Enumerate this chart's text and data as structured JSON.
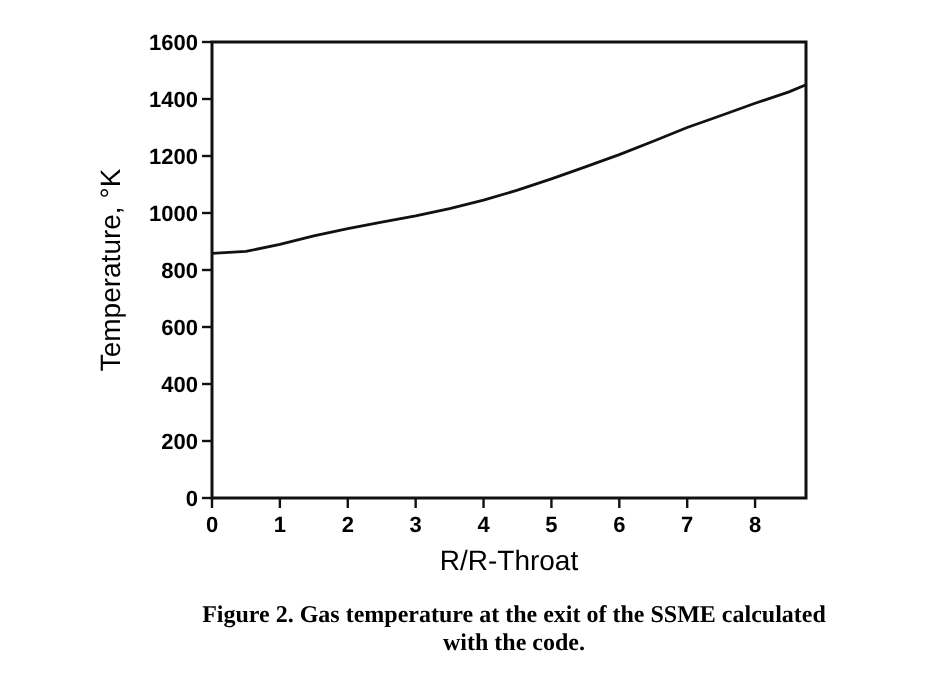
{
  "chart_data": {
    "type": "line",
    "xlabel": "R/R-Throat",
    "ylabel": "Temperature, °K",
    "x": [
      0,
      0.5,
      1,
      1.5,
      2,
      2.5,
      3,
      3.5,
      4,
      4.5,
      5,
      5.5,
      6,
      6.5,
      7,
      7.5,
      8,
      8.5,
      8.75
    ],
    "series": [
      {
        "color": "#111111",
        "values": [
          858,
          865,
          890,
          920,
          945,
          968,
          990,
          1015,
          1045,
          1080,
          1120,
          1162,
          1205,
          1252,
          1300,
          1342,
          1385,
          1425,
          1450
        ]
      }
    ],
    "xlim": [
      0,
      8.75
    ],
    "xticks": [
      0,
      1,
      2,
      3,
      4,
      5,
      6,
      7,
      8
    ],
    "ylim": [
      0,
      1600
    ],
    "yticks": [
      0,
      200,
      400,
      600,
      800,
      1000,
      1200,
      1400,
      1600
    ],
    "marker": "none",
    "line_style": "solid",
    "annotations": [
      "Figure 2. Gas temperature at the exit of the SSME calculated with the code."
    ]
  }
}
